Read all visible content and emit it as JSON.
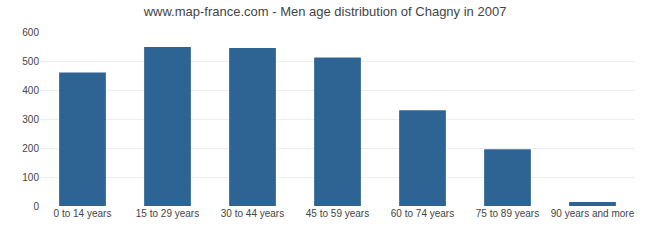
{
  "chart_data": {
    "type": "bar",
    "title": "www.map-france.com - Men age distribution of Chagny in 2007",
    "categories": [
      "0 to 14 years",
      "15 to 29 years",
      "30 to 44 years",
      "45 to 59 years",
      "60 to 74 years",
      "75 to 89 years",
      "90 years and more"
    ],
    "values": [
      460,
      548,
      545,
      512,
      330,
      196,
      14
    ],
    "color": "#2e6494",
    "ylim": [
      0,
      600
    ],
    "yticks": [
      0,
      100,
      200,
      300,
      400,
      500,
      600
    ],
    "grid": true
  }
}
